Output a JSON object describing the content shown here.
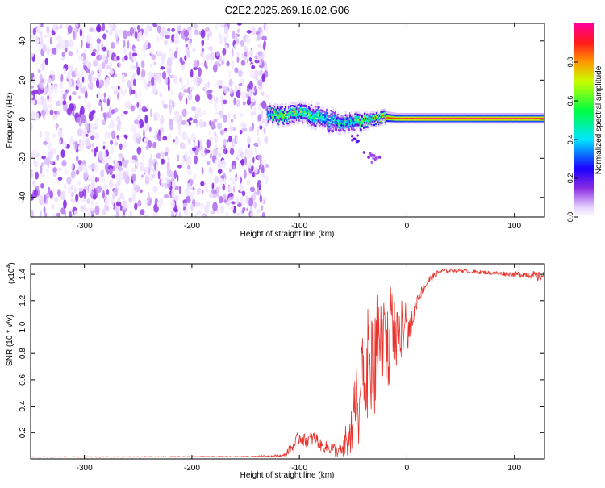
{
  "title": "C2E2.2025.269.16.02.G06",
  "chart_data": [
    {
      "type": "heatmap",
      "xlabel": "Height of straight line (km)",
      "ylabel": "Frequency (Hz)",
      "xlim": [
        -350,
        128
      ],
      "ylim": [
        -50,
        49
      ],
      "xticks": [
        -300,
        -200,
        -100,
        0,
        100
      ],
      "yticks": [
        -40,
        -20,
        0,
        20,
        40
      ],
      "colorbar": {
        "label": "Normalized spectral amplitude",
        "range": [
          0,
          1
        ],
        "ticks": [
          "0.0",
          "0.2",
          "0.4",
          "0.6",
          "0.8"
        ],
        "tick_values": [
          0.0,
          0.2,
          0.4,
          0.6,
          0.8
        ],
        "colormap": "white-violet-blue-cyan-green-yellow-red-magenta"
      },
      "noise_region": {
        "x_from": -350,
        "x_to": -130,
        "frequency_span": [
          -50,
          49
        ],
        "amplitude_range": [
          0.02,
          0.15
        ]
      },
      "signal_track": [
        {
          "x": -130,
          "freq": 3.0,
          "amp": 0.45,
          "width_hz": 4
        },
        {
          "x": -120,
          "freq": 2.0,
          "amp": 0.75,
          "width_hz": 5
        },
        {
          "x": -110,
          "freq": 2.0,
          "amp": 0.7,
          "width_hz": 5
        },
        {
          "x": -100,
          "freq": 3.0,
          "amp": 0.65,
          "width_hz": 5
        },
        {
          "x": -90,
          "freq": 2.0,
          "amp": 0.6,
          "width_hz": 6
        },
        {
          "x": -80,
          "freq": 1.0,
          "amp": 0.55,
          "width_hz": 6
        },
        {
          "x": -70,
          "freq": -1.0,
          "amp": 0.5,
          "width_hz": 6
        },
        {
          "x": -60,
          "freq": -2.0,
          "amp": 0.5,
          "width_hz": 5
        },
        {
          "x": -50,
          "freq": -1.0,
          "amp": 0.55,
          "width_hz": 5
        },
        {
          "x": -40,
          "freq": -1.0,
          "amp": 0.7,
          "width_hz": 4
        },
        {
          "x": -30,
          "freq": 0.0,
          "amp": 0.8,
          "width_hz": 3
        },
        {
          "x": -20,
          "freq": 1.0,
          "amp": 0.85,
          "width_hz": 3
        },
        {
          "x": -10,
          "freq": 0.5,
          "amp": 0.9,
          "width_hz": 2.5
        },
        {
          "x": 0,
          "freq": 0.5,
          "amp": 0.95,
          "width_hz": 2.5
        },
        {
          "x": 30,
          "freq": 0.5,
          "amp": 0.97,
          "width_hz": 2.5
        },
        {
          "x": 60,
          "freq": 0.5,
          "amp": 0.97,
          "width_hz": 2.5
        },
        {
          "x": 90,
          "freq": 0.5,
          "amp": 0.96,
          "width_hz": 2.5
        },
        {
          "x": 128,
          "freq": 0.5,
          "amp": 0.95,
          "width_hz": 2.5
        }
      ],
      "side_branch": [
        {
          "x": -70,
          "freq": -5,
          "amp": 0.15
        },
        {
          "x": -50,
          "freq": -10,
          "amp": 0.18
        },
        {
          "x": -35,
          "freq": -18,
          "amp": 0.15
        },
        {
          "x": -28,
          "freq": -21,
          "amp": 0.12
        }
      ]
    },
    {
      "type": "line",
      "xlabel": "Height of straight line (km)",
      "ylabel": "SNR (10 * v/v)",
      "multiplier_label": "(x10",
      "multiplier_exponent": "4",
      "multiplier_close": ")",
      "xlim": [
        -350,
        128
      ],
      "ylim": [
        0,
        1.48
      ],
      "xticks": [
        -300,
        -200,
        -100,
        0,
        100
      ],
      "yticks": [
        0.2,
        0.4,
        0.6,
        0.8,
        1.0,
        1.2,
        1.4
      ],
      "ytick_labels": [
        "0.2",
        "0.4",
        "0.6",
        "0.8",
        "1.0",
        "1.2",
        "1.4"
      ],
      "color": "#e8322b",
      "series": [
        {
          "name": "SNR",
          "x": [
            -350,
            -300,
            -250,
            -200,
            -150,
            -115,
            -105,
            -100,
            -95,
            -85,
            -80,
            -70,
            -60,
            -55,
            -50,
            -45,
            -40,
            -35,
            -30,
            -25,
            -20,
            -15,
            -10,
            -5,
            0,
            5,
            10,
            20,
            30,
            40,
            50,
            60,
            80,
            100,
            115,
            120,
            128
          ],
          "y": [
            0.015,
            0.015,
            0.016,
            0.017,
            0.018,
            0.025,
            0.1,
            0.17,
            0.14,
            0.16,
            0.1,
            0.08,
            0.05,
            0.15,
            0.3,
            0.45,
            0.58,
            0.62,
            0.68,
            0.78,
            0.85,
            0.88,
            0.88,
            0.9,
            0.95,
            1.05,
            1.22,
            1.35,
            1.42,
            1.43,
            1.43,
            1.42,
            1.41,
            1.4,
            1.4,
            1.38,
            1.39
          ],
          "noise_amplitude": [
            0.003,
            0.003,
            0.003,
            0.003,
            0.003,
            0.01,
            0.05,
            0.06,
            0.05,
            0.06,
            0.04,
            0.05,
            0.06,
            0.15,
            0.25,
            0.35,
            0.4,
            0.4,
            0.4,
            0.38,
            0.35,
            0.3,
            0.25,
            0.2,
            0.15,
            0.08,
            0.05,
            0.03,
            0.02,
            0.015,
            0.015,
            0.015,
            0.015,
            0.02,
            0.03,
            0.04,
            0.03
          ]
        }
      ]
    }
  ]
}
